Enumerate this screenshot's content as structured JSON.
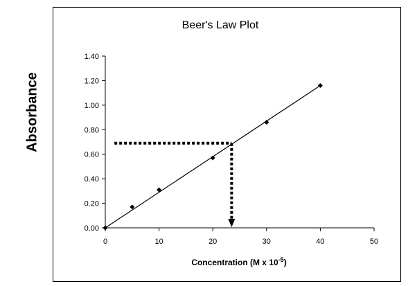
{
  "chart_data": {
    "type": "scatter",
    "title": "Beer's Law Plot",
    "xlabel": "Concentration (M x 10",
    "xlabel_superscript": "-5",
    "xlabel_suffix": ")",
    "ylabel": "Absorbance",
    "xlim": [
      0,
      50
    ],
    "ylim": [
      0,
      1.4
    ],
    "xticks": [
      "0",
      "10",
      "20",
      "30",
      "40",
      "50"
    ],
    "yticks": [
      "0.00",
      "0.20",
      "0.40",
      "0.60",
      "0.80",
      "1.00",
      "1.20",
      "1.40"
    ],
    "grid": false,
    "legend": "none",
    "series": [
      {
        "x": [
          0,
          5,
          10,
          20,
          30,
          40
        ],
        "y": [
          0.0,
          0.17,
          0.31,
          0.57,
          0.86,
          1.16
        ]
      }
    ],
    "trendline": {
      "x": [
        0,
        40
      ],
      "y": [
        0.0,
        1.16
      ]
    },
    "reading_line": {
      "unknown_absorbance": 0.69,
      "x_start": 1.7,
      "concentration": 23.5
    },
    "colors": {
      "points": "#000000",
      "line": "#000000",
      "reading": "#000000"
    }
  }
}
